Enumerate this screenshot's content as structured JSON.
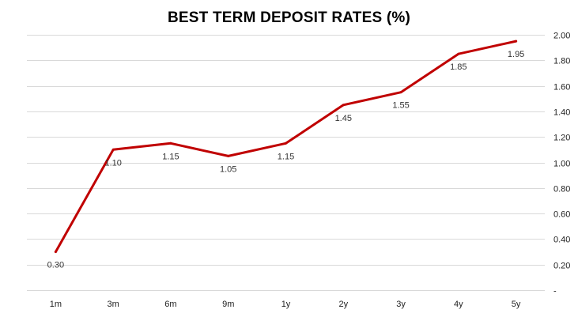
{
  "chart_data": {
    "type": "line",
    "title": "BEST TERM DEPOSIT RATES (%)",
    "categories": [
      "1m",
      "3m",
      "6m",
      "9m",
      "1y",
      "2y",
      "3y",
      "4y",
      "5y"
    ],
    "values": [
      0.3,
      1.1,
      1.15,
      1.05,
      1.15,
      1.45,
      1.55,
      1.85,
      1.95
    ],
    "data_labels": [
      "0.30",
      "1.10",
      "1.15",
      "1.05",
      "1.15",
      "1.45",
      "1.55",
      "1.85",
      "1.95"
    ],
    "ylim": [
      0,
      2.0
    ],
    "y_ticks": [
      0,
      0.2,
      0.4,
      0.6,
      0.8,
      1.0,
      1.2,
      1.4,
      1.6,
      1.8,
      2.0
    ],
    "y_tick_labels": [
      "-",
      "0.20",
      "0.40",
      "0.60",
      "0.80",
      "1.00",
      "1.20",
      "1.40",
      "1.60",
      "1.80",
      "2.00"
    ],
    "y_axis_side": "right",
    "grid": true,
    "legend": "none",
    "colors": {
      "line": "#C00000",
      "grid": "#D9D9D9"
    }
  }
}
